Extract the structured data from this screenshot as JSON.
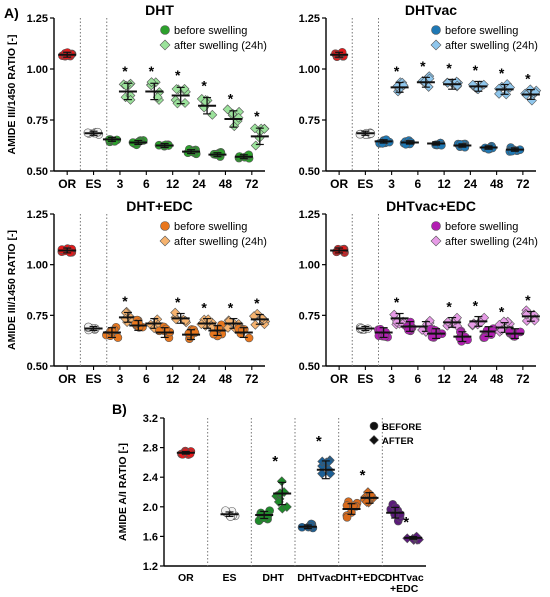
{
  "figure": {
    "panel_A_label": "A)",
    "panel_B_label": "B)"
  },
  "colors": {
    "OR": "#e41a1c",
    "ES": "#f2f2f2",
    "DHT_before": "#2ca02c",
    "DHT_after": "#9be29b",
    "DHTvac_before": "#1f78b4",
    "DHTvac_after": "#8fc6ec",
    "DHTEDC_before": "#e8771e",
    "DHTEDC_after": "#f6b36f",
    "DHTvacEDC_before": "#b21fb2",
    "DHTvacEDC_after": "#e69be6",
    "B_DHT": "#1e8b2a",
    "B_DHTvac": "#1c5f95",
    "B_DHTEDC": "#d96b1c",
    "B_DHTvacEDC": "#5b1b7a"
  },
  "chart_data": [
    {
      "id": "dht",
      "type": "scatter",
      "title": "DHT",
      "ylabel": "AMIDE III/1450 RATIO [-]",
      "ylim": [
        0.5,
        1.25
      ],
      "yticks": [
        "0.50",
        "0.75",
        "1.00",
        "1.25"
      ],
      "categories": [
        "OR",
        "ES",
        "3",
        "6",
        "12",
        "24",
        "48",
        "72"
      ],
      "legend": [
        "before swelling",
        "after swelling (24h)"
      ],
      "legend_markers": [
        "circle",
        "diamond"
      ],
      "series": [
        {
          "name": "OR",
          "values": [
            1.07
          ]
        },
        {
          "name": "ES",
          "values": [
            0.685
          ]
        },
        {
          "name": "before swelling",
          "values": [
            null,
            null,
            0.655,
            0.64,
            0.625,
            0.595,
            0.58,
            0.57
          ]
        },
        {
          "name": "after swelling (24h)",
          "values": [
            null,
            null,
            0.89,
            0.89,
            0.87,
            0.82,
            0.755,
            0.67
          ]
        }
      ],
      "annotations": [
        "*",
        "*",
        "*",
        "*",
        "*",
        "*"
      ]
    },
    {
      "id": "dhtvac",
      "type": "scatter",
      "title": "DHTvac",
      "ylabel": "",
      "ylim": [
        0.5,
        1.25
      ],
      "yticks": [
        "0.50",
        "0.75",
        "1.00",
        "1.25"
      ],
      "categories": [
        "OR",
        "ES",
        "3",
        "6",
        "12",
        "24",
        "48",
        "72"
      ],
      "legend": [
        "before swelling",
        "after swelling (24h)"
      ],
      "legend_markers": [
        "circle",
        "diamond"
      ],
      "series": [
        {
          "name": "OR",
          "values": [
            1.07
          ]
        },
        {
          "name": "ES",
          "values": [
            0.685
          ]
        },
        {
          "name": "before swelling",
          "values": [
            null,
            null,
            0.645,
            0.64,
            0.635,
            0.625,
            0.615,
            0.605
          ]
        },
        {
          "name": "after swelling (24h)",
          "values": [
            null,
            null,
            0.91,
            0.935,
            0.925,
            0.915,
            0.9,
            0.875
          ]
        }
      ],
      "annotations": [
        "*",
        "*",
        "*",
        "*",
        "*",
        "*"
      ]
    },
    {
      "id": "dhtedc",
      "type": "scatter",
      "title": "DHT+EDC",
      "ylabel": "AMIDE III/1450 RATIO [-]",
      "ylim": [
        0.5,
        1.25
      ],
      "yticks": [
        "0.50",
        "0.75",
        "1.00",
        "1.25"
      ],
      "categories": [
        "OR",
        "ES",
        "3",
        "6",
        "12",
        "24",
        "48",
        "72"
      ],
      "legend": [
        "before swelling",
        "after swelling (24h)"
      ],
      "legend_markers": [
        "circle",
        "diamond"
      ],
      "series": [
        {
          "name": "OR",
          "values": [
            1.07
          ]
        },
        {
          "name": "ES",
          "values": [
            0.685
          ]
        },
        {
          "name": "before swelling",
          "values": [
            null,
            null,
            0.665,
            0.7,
            0.665,
            0.655,
            0.675,
            0.665
          ]
        },
        {
          "name": "after swelling (24h)",
          "values": [
            null,
            null,
            0.74,
            0.71,
            0.735,
            0.71,
            0.71,
            0.73
          ]
        }
      ],
      "annotations": [
        "*",
        "",
        "*",
        "*",
        "*",
        "*"
      ]
    },
    {
      "id": "dhtvacedc",
      "type": "scatter",
      "title": "DHTvac+EDC",
      "ylabel": "",
      "ylim": [
        0.5,
        1.25
      ],
      "yticks": [
        "0.50",
        "0.75",
        "1.00",
        "1.25"
      ],
      "categories": [
        "OR",
        "ES",
        "3",
        "6",
        "12",
        "24",
        "48",
        "72"
      ],
      "legend": [
        "before swelling",
        "after swelling (24h)"
      ],
      "legend_markers": [
        "circle",
        "diamond"
      ],
      "series": [
        {
          "name": "OR",
          "values": [
            1.07
          ]
        },
        {
          "name": "ES",
          "values": [
            0.685
          ]
        },
        {
          "name": "before swelling",
          "values": [
            null,
            null,
            0.665,
            0.695,
            0.66,
            0.645,
            0.67,
            0.66
          ]
        },
        {
          "name": "after swelling (24h)",
          "values": [
            null,
            null,
            0.735,
            0.695,
            0.715,
            0.72,
            0.69,
            0.745
          ]
        }
      ],
      "annotations": [
        "*",
        "",
        "*",
        "*",
        "*",
        "*"
      ]
    },
    {
      "id": "amide_ai",
      "type": "scatter",
      "title": "",
      "ylabel": "AMIDE A/I RATIO [-]",
      "ylim": [
        1.2,
        3.2
      ],
      "yticks": [
        "1.2",
        "1.6",
        "2.0",
        "2.4",
        "2.8",
        "3.2"
      ],
      "categories": [
        "OR",
        "ES",
        "DHT",
        "DHTvac",
        "DHT+EDC",
        "DHTvac\n+EDC"
      ],
      "legend": [
        "BEFORE",
        "AFTER"
      ],
      "legend_markers": [
        "circle",
        "diamond"
      ],
      "series": [
        {
          "name": "BEFORE",
          "values": [
            2.73,
            1.9,
            1.89,
            1.73,
            1.97,
            1.92
          ]
        },
        {
          "name": "AFTER",
          "values": [
            null,
            null,
            2.18,
            2.5,
            2.12,
            1.58
          ]
        }
      ],
      "annotations": [
        "",
        "",
        "*",
        "*",
        "*",
        "*"
      ]
    }
  ]
}
